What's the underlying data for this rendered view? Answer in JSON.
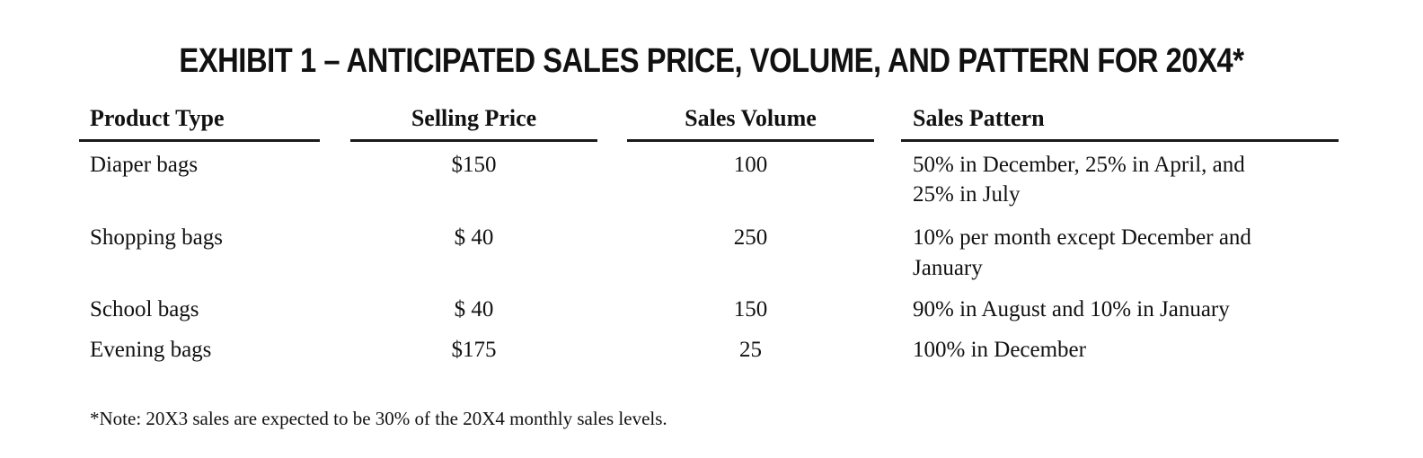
{
  "title": "EXHIBIT 1 – ANTICIPATED SALES PRICE, VOLUME, AND PATTERN FOR 20X4*",
  "columns": {
    "product_type": "Product Type",
    "selling_price": "Selling Price",
    "sales_volume": "Sales Volume",
    "sales_pattern": "Sales Pattern"
  },
  "rows": [
    {
      "product": "Diaper bags",
      "price": "$150",
      "volume": "100",
      "pattern_line1": "50% in December, 25% in April, and",
      "pattern_line2": "25% in July"
    },
    {
      "product": "Shopping bags",
      "price": "$ 40",
      "volume": "250",
      "pattern_line1": "10% per month except December and",
      "pattern_line2": "January"
    },
    {
      "product": "School bags",
      "price": "$ 40",
      "volume": "150",
      "pattern_line1": "90% in August and 10% in January",
      "pattern_line2": ""
    },
    {
      "product": "Evening bags",
      "price": "$175",
      "volume": "25",
      "pattern_line1": "100% in December",
      "pattern_line2": ""
    }
  ],
  "note": "*Note: 20X3 sales are expected to be 30% of the 20X4 monthly sales levels."
}
